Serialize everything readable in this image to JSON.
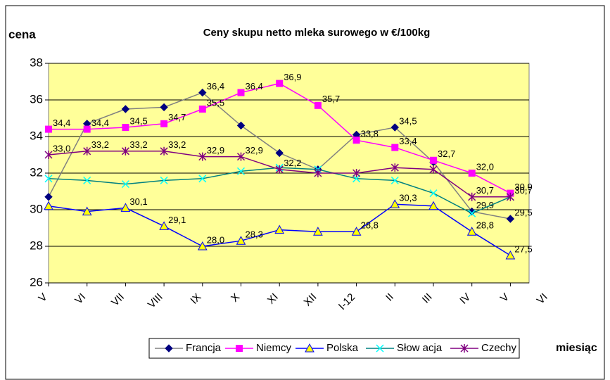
{
  "chart_data": {
    "type": "line",
    "title": "Ceny skupu netto mleka surowego  w €/100kg",
    "y_label": "cena",
    "x_label": "miesiąc",
    "categories": [
      "V",
      "VI",
      "VII",
      "VIII",
      "IX",
      "X",
      "XI",
      "XII",
      "I-12",
      "II",
      "III",
      "IV",
      "V",
      "VI"
    ],
    "ylim": [
      26,
      38
    ],
    "yticks": [
      26,
      28,
      30,
      32,
      34,
      36,
      38
    ],
    "grid": true,
    "plot_background": "#ffff99",
    "legend": "bottom",
    "series": [
      {
        "name": "Francja",
        "color": "#808080",
        "marker_color": "#000080",
        "marker": "diamond",
        "values": [
          30.7,
          34.7,
          35.5,
          35.6,
          36.4,
          34.6,
          33.1,
          32.2,
          34.1,
          34.5,
          32.6,
          29.9,
          29.5,
          null
        ],
        "value_labels": [
          null,
          null,
          null,
          null,
          "36,4",
          null,
          null,
          null,
          null,
          "34,5",
          null,
          "29,9",
          "29,5",
          null
        ]
      },
      {
        "name": "Niemcy",
        "color": "#ff00ff",
        "marker_color": "#ff00ff",
        "marker": "square",
        "values": [
          34.4,
          34.4,
          34.5,
          34.7,
          35.5,
          36.4,
          36.9,
          35.7,
          33.8,
          33.4,
          32.7,
          32.0,
          30.9,
          null
        ],
        "value_labels": [
          "34,4",
          "34,4",
          "34,5",
          "34,7",
          "35,5",
          "36,4",
          "36,9",
          "35,7",
          "33,8",
          "33,4",
          "32,7",
          "32,0",
          "30,9",
          null
        ]
      },
      {
        "name": "Polska",
        "color": "#0000ff",
        "marker_color": "#ffff00",
        "marker": "triangle",
        "values": [
          30.2,
          29.9,
          30.1,
          29.1,
          28.0,
          28.3,
          28.9,
          28.8,
          28.8,
          30.3,
          30.2,
          28.8,
          27.5,
          null
        ],
        "value_labels": [
          null,
          null,
          "30,1",
          "29,1",
          "28,0",
          "28,3",
          null,
          null,
          "28,8",
          "30,3",
          null,
          "28,8",
          "27,5",
          null
        ]
      },
      {
        "name": "Słow acja",
        "color": "#008080",
        "marker_color": "#00ffff",
        "marker": "x",
        "values": [
          31.7,
          31.6,
          31.4,
          31.6,
          31.7,
          32.1,
          32.3,
          32.2,
          31.7,
          31.6,
          30.9,
          29.8,
          30.7,
          null
        ],
        "value_labels": [
          null,
          null,
          null,
          null,
          null,
          null,
          null,
          null,
          null,
          null,
          null,
          null,
          "30,7",
          null
        ]
      },
      {
        "name": "Czechy",
        "color": "#800080",
        "marker_color": "#800080",
        "marker": "star",
        "values": [
          33.0,
          33.2,
          33.2,
          33.2,
          32.9,
          32.9,
          32.2,
          32.0,
          32.0,
          32.3,
          32.2,
          30.7,
          30.7,
          null
        ],
        "value_labels": [
          "33,0",
          "33,2",
          "33,2",
          "33,2",
          "32,9",
          "32,9",
          "32,2",
          null,
          null,
          null,
          null,
          "30,7",
          null,
          null
        ]
      }
    ]
  }
}
